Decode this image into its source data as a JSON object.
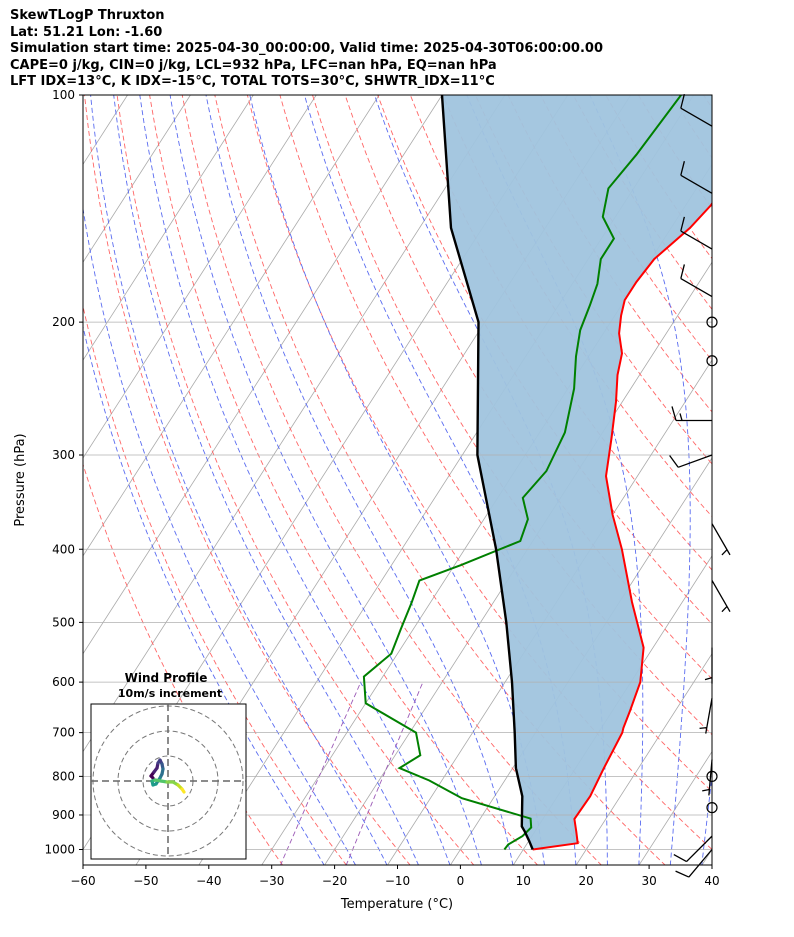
{
  "header": {
    "line1": "SkewTLogP Thruxton",
    "line2": "Lat: 51.21   Lon: -1.60",
    "line3": "Simulation start time: 2025-04-30_00:00:00, Valid time: 2025-04-30T06:00:00.00",
    "line4": "CAPE=0 j/kg, CIN=0 j/kg, LCL=932 hPa, LFC=nan hPa, EQ=nan hPa",
    "line5": "LFT IDX=13$^\\circ$C, K IDX=-15$^\\circ$C, TOTAL TOTS=30$^\\circ$C, SHWTR_IDX=11$^\\circ$C"
  },
  "colors": {
    "temperature": "#ff0000",
    "dewpoint": "#008000",
    "parcel": "#000000",
    "shade": "#a0c4de",
    "dry_adiabat": "#ff6666",
    "moist_adiabat": "#5a6cf0",
    "mixing_ratio": "#9b59b6",
    "isotherm": "#aaaaaa"
  },
  "chart_data": {
    "type": "line",
    "subtype": "skew-t log-p diagram",
    "xlabel": "Temperature ($^\\circ$C)",
    "ylabel": "Pressure (hPa)",
    "xlim": [
      -60,
      40
    ],
    "ylim": [
      1050,
      100
    ],
    "yscale": "log",
    "xticks": [
      "−60",
      "−50",
      "−40",
      "−30",
      "−20",
      "−10",
      "0",
      "10",
      "20",
      "30",
      "40"
    ],
    "yticks": [
      "1000",
      "900",
      "800",
      "700",
      "600",
      "500",
      "400",
      "300",
      "200",
      "100"
    ],
    "grid": true,
    "series": [
      {
        "role": "temperature",
        "points": [
          [
            11.5,
            1000
          ],
          [
            18,
            981
          ],
          [
            16.6,
            947
          ],
          [
            15,
            911
          ],
          [
            15.2,
            850
          ],
          [
            14.5,
            780
          ],
          [
            13.8,
            700
          ],
          [
            13.5,
            690
          ],
          [
            12.8,
            655
          ],
          [
            11.5,
            600
          ],
          [
            8.5,
            540
          ],
          [
            2,
            470
          ],
          [
            -5,
            400
          ],
          [
            -10,
            360
          ],
          [
            -15,
            320
          ],
          [
            -18,
            285
          ],
          [
            -21,
            255
          ],
          [
            -23.5,
            235
          ],
          [
            -25,
            220
          ],
          [
            -27.5,
            207
          ],
          [
            -29,
            196
          ],
          [
            -30,
            187
          ],
          [
            -30,
            177
          ],
          [
            -29.5,
            165
          ],
          [
            -27,
            150
          ],
          [
            -26,
            140
          ],
          [
            -26,
            130
          ],
          [
            -27,
            120
          ],
          [
            -30,
            100
          ]
        ]
      },
      {
        "role": "dewpoint",
        "points": [
          [
            7,
            1000
          ],
          [
            7.1,
            985
          ],
          [
            8.5,
            960
          ],
          [
            9,
            935
          ],
          [
            8,
            910
          ],
          [
            -5,
            855
          ],
          [
            -12,
            810
          ],
          [
            -18,
            780
          ],
          [
            -16,
            750
          ],
          [
            -19,
            700
          ],
          [
            -30,
            640
          ],
          [
            -33,
            590
          ],
          [
            -31,
            550
          ],
          [
            -32,
            510
          ],
          [
            -33,
            470
          ],
          [
            -34,
            440
          ],
          [
            -29,
            420
          ],
          [
            -22,
            390
          ],
          [
            -23,
            365
          ],
          [
            -26,
            342
          ],
          [
            -25,
            315
          ],
          [
            -26,
            280
          ],
          [
            -29,
            245
          ],
          [
            -32,
            222
          ],
          [
            -34,
            205
          ],
          [
            -35,
            190
          ],
          [
            -36,
            178
          ],
          [
            -38,
            165
          ],
          [
            -38,
            155
          ],
          [
            -42,
            145
          ],
          [
            -44,
            133
          ],
          [
            -43,
            120
          ],
          [
            -42,
            100
          ]
        ]
      },
      {
        "role": "parcel",
        "points": [
          [
            11.5,
            1000
          ],
          [
            10.1,
            975
          ],
          [
            8.3,
            945
          ],
          [
            7.4,
            932
          ],
          [
            4.4,
            850
          ],
          [
            0.5,
            780
          ],
          [
            -3.3,
            700
          ],
          [
            -8.9,
            600
          ],
          [
            -15.9,
            500
          ],
          [
            -25,
            400
          ],
          [
            -37.6,
            300
          ],
          [
            -51,
            200
          ],
          [
            -65,
            150
          ],
          [
            -80,
            100
          ]
        ]
      }
    ],
    "annotations": {
      "inset_title": "Wind Profile",
      "inset_subtitle": "10m/s increment"
    }
  }
}
